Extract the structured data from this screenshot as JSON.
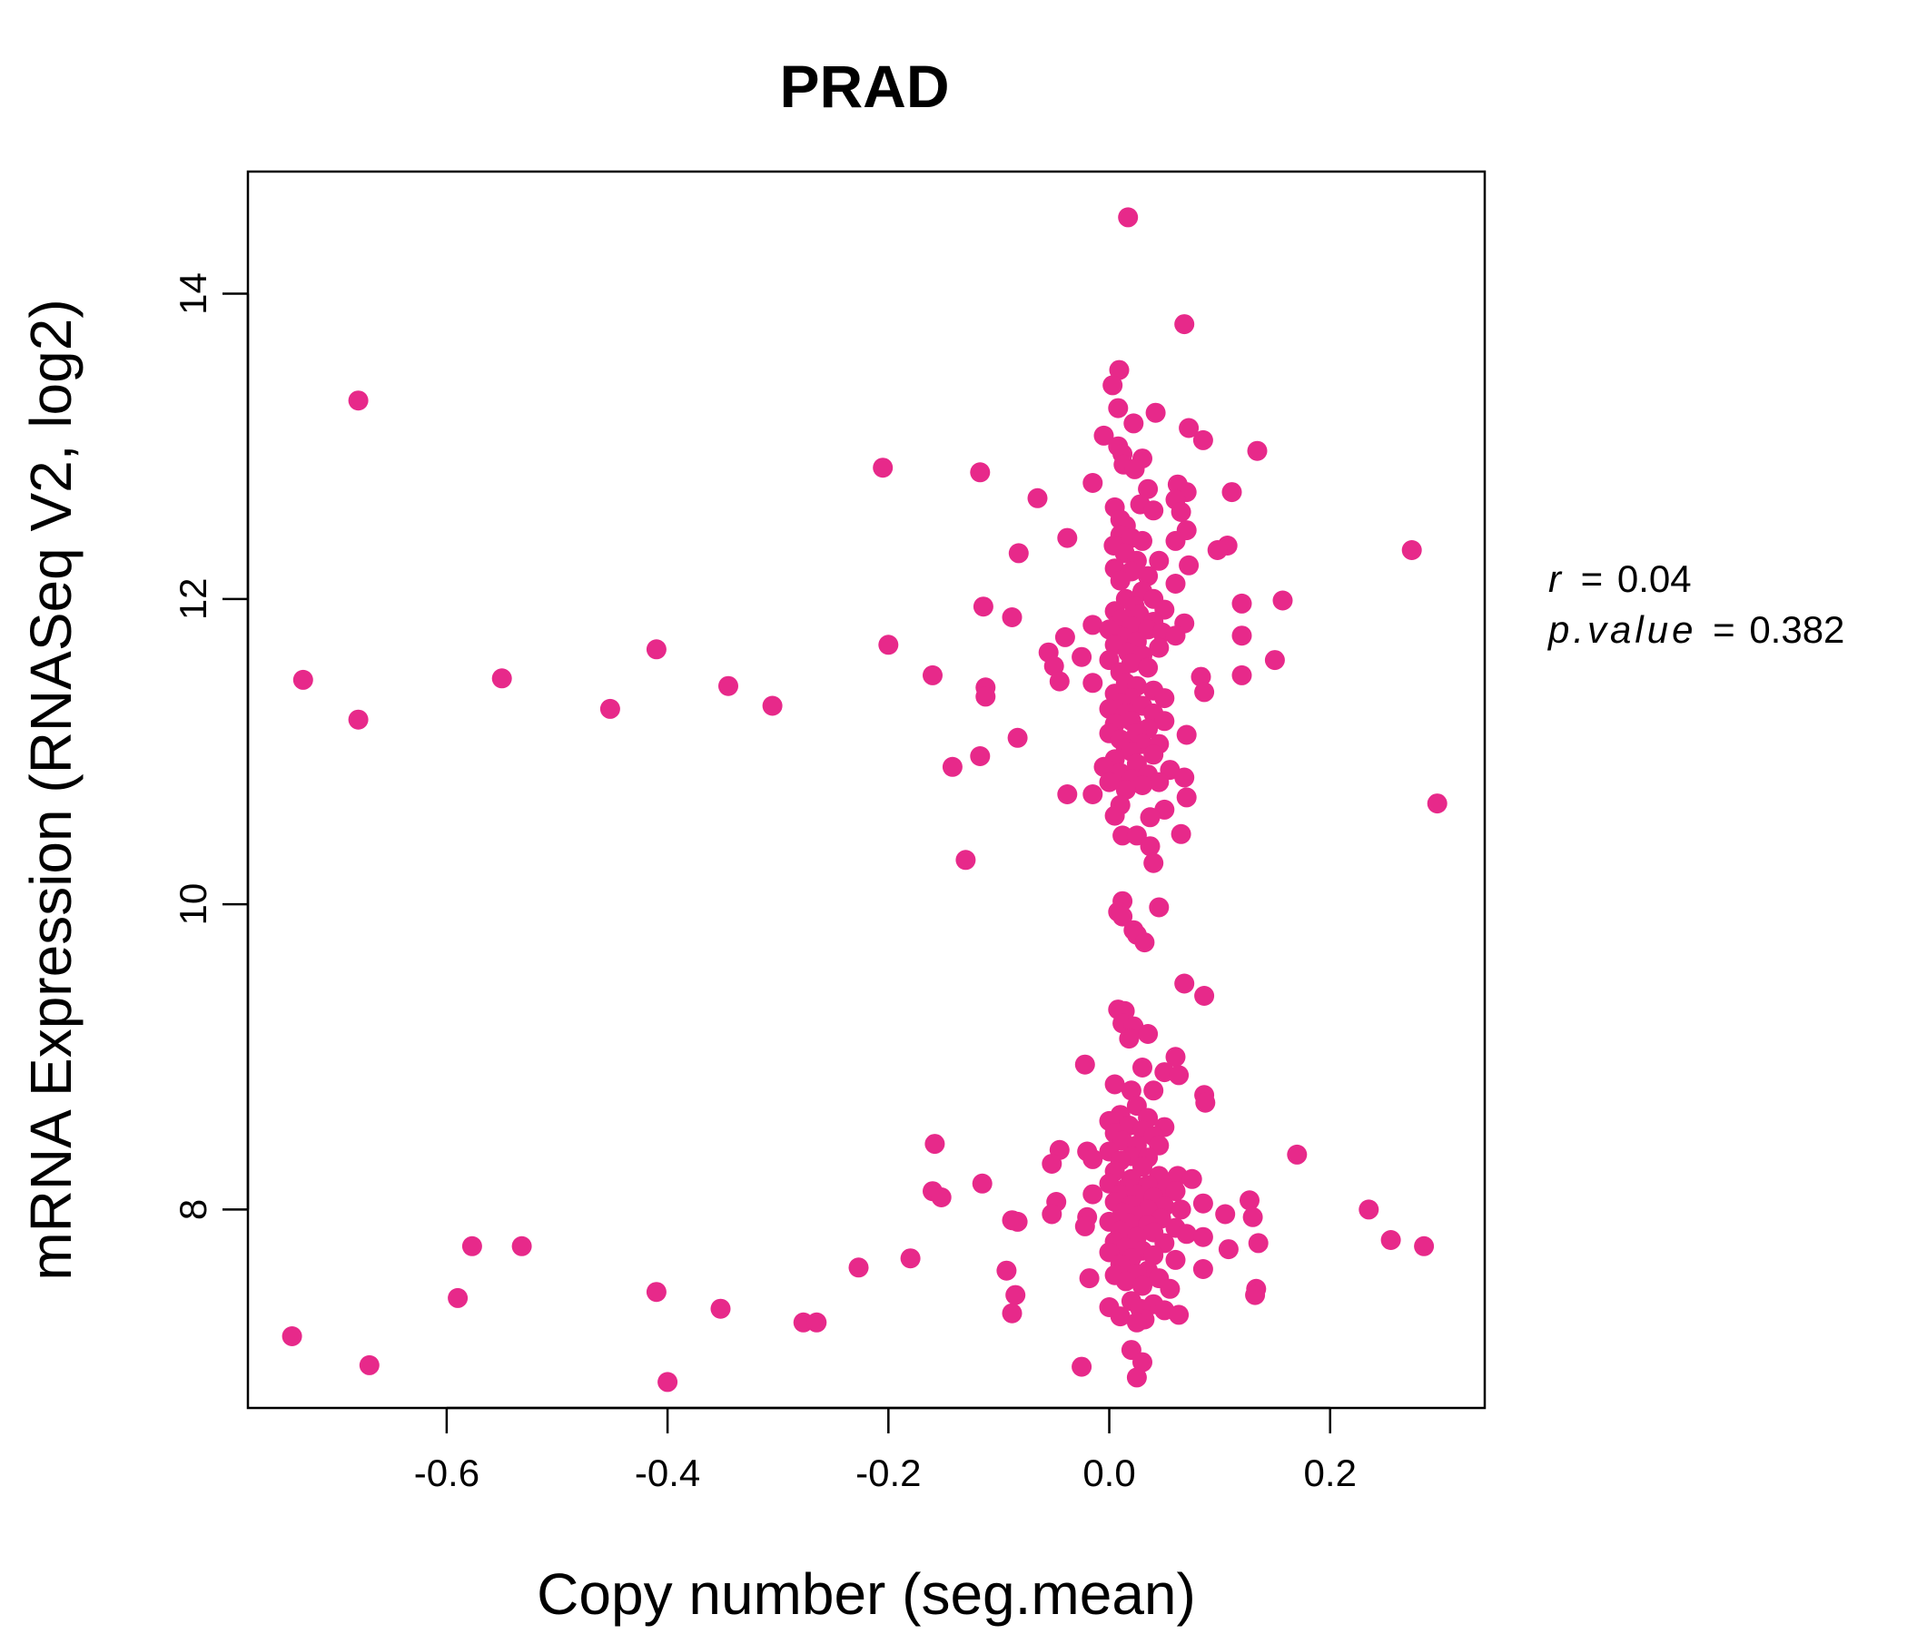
{
  "chart_data": {
    "type": "scatter",
    "title": "PRAD",
    "xlabel": "Copy number (seg.mean)",
    "ylabel": "mRNA Expression (RNASeq V2, log2)",
    "xlim": [
      -0.78,
      0.34
    ],
    "ylim": [
      6.7,
      14.8
    ],
    "xticks": [
      -0.6,
      -0.4,
      -0.2,
      0.0,
      0.2
    ],
    "xtick_labels": [
      "-0.6",
      "-0.4",
      "-0.2",
      "0.0",
      "0.2"
    ],
    "yticks": [
      8,
      10,
      12,
      14
    ],
    "ytick_labels": [
      "8",
      "10",
      "12",
      "14"
    ],
    "grid": false,
    "point_color": "#E7298A",
    "stats": {
      "r_symbol": "r",
      "r_value": "0.04",
      "p_symbol": "p.value",
      "p_value": "0.382",
      "equals": "="
    },
    "points": [
      [
        0.017,
        14.5
      ],
      [
        0.068,
        13.8
      ],
      [
        -0.68,
        13.3
      ],
      [
        0.009,
        13.5
      ],
      [
        0.003,
        13.4
      ],
      [
        0.008,
        13.25
      ],
      [
        0.042,
        13.22
      ],
      [
        0.022,
        13.15
      ],
      [
        0.072,
        13.12
      ],
      [
        -0.005,
        13.07
      ],
      [
        0.085,
        13.04
      ],
      [
        0.134,
        12.97
      ],
      [
        0.008,
        13.0
      ],
      [
        0.012,
        12.95
      ],
      [
        0.013,
        12.88
      ],
      [
        0.03,
        12.92
      ],
      [
        0.023,
        12.85
      ],
      [
        -0.205,
        12.86
      ],
      [
        -0.117,
        12.83
      ],
      [
        0.062,
        12.75
      ],
      [
        -0.015,
        12.76
      ],
      [
        0.035,
        12.72
      ],
      [
        0.07,
        12.7
      ],
      [
        0.111,
        12.7
      ],
      [
        -0.065,
        12.66
      ],
      [
        0.06,
        12.65
      ],
      [
        0.005,
        12.6
      ],
      [
        0.028,
        12.62
      ],
      [
        0.04,
        12.58
      ],
      [
        0.065,
        12.57
      ],
      [
        0.01,
        12.52
      ],
      [
        0.015,
        12.48
      ],
      [
        0.07,
        12.45
      ],
      [
        0.01,
        12.42
      ],
      [
        0.02,
        12.4
      ],
      [
        -0.038,
        12.4
      ],
      [
        0.03,
        12.38
      ],
      [
        0.06,
        12.38
      ],
      [
        0.004,
        12.35
      ],
      [
        0.107,
        12.35
      ],
      [
        0.098,
        12.32
      ],
      [
        0.274,
        12.32
      ],
      [
        -0.082,
        12.3
      ],
      [
        0.014,
        12.3
      ],
      [
        0.025,
        12.25
      ],
      [
        0.045,
        12.25
      ],
      [
        0.072,
        12.22
      ],
      [
        0.005,
        12.2
      ],
      [
        0.02,
        12.18
      ],
      [
        0.035,
        12.15
      ],
      [
        0.01,
        12.12
      ],
      [
        0.06,
        12.1
      ],
      [
        0.03,
        12.05
      ],
      [
        0.015,
        12.0
      ],
      [
        0.04,
        12.0
      ],
      [
        0.157,
        11.99
      ],
      [
        0.12,
        11.97
      ],
      [
        0.023,
        11.95
      ],
      [
        -0.114,
        11.95
      ],
      [
        0.05,
        11.93
      ],
      [
        0.005,
        11.92
      ],
      [
        0.027,
        11.9
      ],
      [
        -0.088,
        11.88
      ],
      [
        0.011,
        11.87
      ],
      [
        0.04,
        11.85
      ],
      [
        0.068,
        11.84
      ],
      [
        -0.015,
        11.83
      ],
      [
        0.02,
        11.82
      ],
      [
        0.035,
        11.8
      ],
      [
        0.0,
        11.8
      ],
      [
        0.048,
        11.78
      ],
      [
        0.012,
        11.75
      ],
      [
        0.06,
        11.76
      ],
      [
        0.12,
        11.76
      ],
      [
        -0.04,
        11.75
      ],
      [
        0.025,
        11.72
      ],
      [
        0.005,
        11.7
      ],
      [
        -0.2,
        11.7
      ],
      [
        -0.41,
        11.67
      ],
      [
        0.045,
        11.68
      ],
      [
        0.017,
        11.65
      ],
      [
        -0.055,
        11.65
      ],
      [
        0.03,
        11.63
      ],
      [
        -0.025,
        11.62
      ],
      [
        0.15,
        11.6
      ],
      [
        0.0,
        11.6
      ],
      [
        0.02,
        11.58
      ],
      [
        -0.05,
        11.56
      ],
      [
        0.035,
        11.55
      ],
      [
        0.01,
        11.52
      ],
      [
        -0.16,
        11.5
      ],
      [
        0.12,
        11.5
      ],
      [
        0.083,
        11.49
      ],
      [
        -0.73,
        11.47
      ],
      [
        -0.55,
        11.48
      ],
      [
        -0.045,
        11.46
      ],
      [
        0.015,
        11.45
      ],
      [
        -0.015,
        11.45
      ],
      [
        0.025,
        11.43
      ],
      [
        -0.345,
        11.43
      ],
      [
        -0.112,
        11.42
      ],
      [
        0.04,
        11.4
      ],
      [
        0.086,
        11.39
      ],
      [
        0.005,
        11.38
      ],
      [
        -0.112,
        11.36
      ],
      [
        0.02,
        11.35
      ],
      [
        0.05,
        11.35
      ],
      [
        0.01,
        11.32
      ],
      [
        0.03,
        11.3
      ],
      [
        -0.305,
        11.3
      ],
      [
        -0.452,
        11.28
      ],
      [
        0.0,
        11.28
      ],
      [
        0.04,
        11.25
      ],
      [
        0.015,
        11.25
      ],
      [
        -0.68,
        11.21
      ],
      [
        0.02,
        11.2
      ],
      [
        0.05,
        11.2
      ],
      [
        0.005,
        11.18
      ],
      [
        0.035,
        11.15
      ],
      [
        0.025,
        11.12
      ],
      [
        0.0,
        11.12
      ],
      [
        0.07,
        11.11
      ],
      [
        -0.083,
        11.09
      ],
      [
        0.01,
        11.08
      ],
      [
        0.03,
        11.05
      ],
      [
        0.045,
        11.05
      ],
      [
        0.015,
        11.02
      ],
      [
        -0.117,
        10.97
      ],
      [
        0.02,
        11.0
      ],
      [
        0.04,
        10.98
      ],
      [
        0.005,
        10.95
      ],
      [
        -0.142,
        10.9
      ],
      [
        -0.005,
        10.9
      ],
      [
        0.025,
        10.92
      ],
      [
        0.055,
        10.88
      ],
      [
        0.01,
        10.86
      ],
      [
        0.035,
        10.85
      ],
      [
        0.068,
        10.83
      ],
      [
        0.02,
        10.82
      ],
      [
        0.045,
        10.8
      ],
      [
        0.0,
        10.8
      ],
      [
        0.03,
        10.78
      ],
      [
        -0.038,
        10.72
      ],
      [
        -0.015,
        10.72
      ],
      [
        0.015,
        10.75
      ],
      [
        0.07,
        10.7
      ],
      [
        0.297,
        10.66
      ],
      [
        0.01,
        10.65
      ],
      [
        0.05,
        10.62
      ],
      [
        0.005,
        10.58
      ],
      [
        0.037,
        10.57
      ],
      [
        0.065,
        10.46
      ],
      [
        0.012,
        10.45
      ],
      [
        0.025,
        10.45
      ],
      [
        0.037,
        10.38
      ],
      [
        0.04,
        10.27
      ],
      [
        -0.13,
        10.29
      ],
      [
        0.012,
        10.02
      ],
      [
        0.008,
        9.95
      ],
      [
        0.045,
        9.98
      ],
      [
        0.012,
        9.92
      ],
      [
        0.022,
        9.83
      ],
      [
        0.025,
        9.8
      ],
      [
        0.032,
        9.75
      ],
      [
        0.068,
        9.48
      ],
      [
        0.086,
        9.4
      ],
      [
        0.008,
        9.31
      ],
      [
        0.014,
        9.3
      ],
      [
        0.012,
        9.22
      ],
      [
        0.022,
        9.2
      ],
      [
        0.035,
        9.15
      ],
      [
        0.018,
        9.12
      ],
      [
        0.06,
        9.0
      ],
      [
        -0.022,
        8.95
      ],
      [
        0.03,
        8.93
      ],
      [
        0.05,
        8.9
      ],
      [
        0.063,
        8.88
      ],
      [
        0.005,
        8.82
      ],
      [
        0.04,
        8.78
      ],
      [
        0.02,
        8.78
      ],
      [
        0.086,
        8.75
      ],
      [
        0.087,
        8.7
      ],
      [
        0.025,
        8.68
      ],
      [
        0.01,
        8.62
      ],
      [
        0.035,
        8.6
      ],
      [
        0.0,
        8.58
      ],
      [
        0.018,
        8.55
      ],
      [
        0.05,
        8.54
      ],
      [
        0.03,
        8.52
      ],
      [
        0.005,
        8.5
      ],
      [
        0.04,
        8.48
      ],
      [
        0.012,
        8.45
      ],
      [
        -0.158,
        8.43
      ],
      [
        0.025,
        8.42
      ],
      [
        0.045,
        8.42
      ],
      [
        -0.045,
        8.39
      ],
      [
        -0.02,
        8.38
      ],
      [
        0.0,
        8.38
      ],
      [
        0.17,
        8.36
      ],
      [
        0.02,
        8.35
      ],
      [
        0.035,
        8.34
      ],
      [
        -0.015,
        8.33
      ],
      [
        0.01,
        8.32
      ],
      [
        -0.052,
        8.3
      ],
      [
        0.03,
        8.28
      ],
      [
        0.005,
        8.25
      ],
      [
        0.062,
        8.22
      ],
      [
        0.045,
        8.22
      ],
      [
        0.02,
        8.2
      ],
      [
        0.075,
        8.2
      ],
      [
        -0.115,
        8.17
      ],
      [
        0.0,
        8.17
      ],
      [
        0.035,
        8.16
      ],
      [
        0.015,
        8.14
      ],
      [
        0.052,
        8.14
      ],
      [
        0.06,
        8.12
      ],
      [
        -0.16,
        8.12
      ],
      [
        0.01,
        8.1
      ],
      [
        -0.015,
        8.1
      ],
      [
        0.025,
        8.1
      ],
      [
        -0.152,
        8.08
      ],
      [
        0.04,
        8.08
      ],
      [
        0.005,
        8.05
      ],
      [
        -0.048,
        8.05
      ],
      [
        0.127,
        8.06
      ],
      [
        0.02,
        8.03
      ],
      [
        0.085,
        8.04
      ],
      [
        0.05,
        8.02
      ],
      [
        0.235,
        8.0
      ],
      [
        0.035,
        8.0
      ],
      [
        0.065,
        8.0
      ],
      [
        0.012,
        7.98
      ],
      [
        -0.052,
        7.97
      ],
      [
        0.105,
        7.97
      ],
      [
        0.028,
        7.96
      ],
      [
        -0.02,
        7.95
      ],
      [
        0.047,
        7.94
      ],
      [
        0.13,
        7.95
      ],
      [
        -0.088,
        7.93
      ],
      [
        -0.083,
        7.92
      ],
      [
        0.0,
        7.92
      ],
      [
        0.018,
        7.91
      ],
      [
        0.035,
        7.9
      ],
      [
        -0.022,
        7.89
      ],
      [
        0.06,
        7.88
      ],
      [
        0.01,
        7.86
      ],
      [
        0.04,
        7.85
      ],
      [
        0.07,
        7.84
      ],
      [
        0.085,
        7.82
      ],
      [
        0.025,
        7.82
      ],
      [
        0.255,
        7.8
      ],
      [
        0.005,
        7.79
      ],
      [
        0.135,
        7.78
      ],
      [
        0.05,
        7.78
      ],
      [
        0.285,
        7.76
      ],
      [
        -0.577,
        7.76
      ],
      [
        -0.532,
        7.76
      ],
      [
        0.015,
        7.75
      ],
      [
        0.108,
        7.74
      ],
      [
        0.03,
        7.73
      ],
      [
        0.0,
        7.72
      ],
      [
        0.04,
        7.7
      ],
      [
        -0.18,
        7.68
      ],
      [
        0.02,
        7.68
      ],
      [
        0.06,
        7.67
      ],
      [
        -0.227,
        7.62
      ],
      [
        0.01,
        7.64
      ],
      [
        0.085,
        7.61
      ],
      [
        0.035,
        7.6
      ],
      [
        -0.093,
        7.6
      ],
      [
        0.025,
        7.58
      ],
      [
        0.005,
        7.57
      ],
      [
        -0.018,
        7.55
      ],
      [
        0.045,
        7.55
      ],
      [
        0.015,
        7.53
      ],
      [
        0.03,
        7.5
      ],
      [
        0.055,
        7.48
      ],
      [
        0.133,
        7.48
      ],
      [
        -0.41,
        7.46
      ],
      [
        0.132,
        7.44
      ],
      [
        -0.085,
        7.44
      ],
      [
        -0.59,
        7.42
      ],
      [
        0.02,
        7.4
      ],
      [
        0.04,
        7.38
      ],
      [
        0.0,
        7.36
      ],
      [
        -0.352,
        7.35
      ],
      [
        0.028,
        7.35
      ],
      [
        0.05,
        7.34
      ],
      [
        -0.088,
        7.32
      ],
      [
        0.063,
        7.31
      ],
      [
        0.01,
        7.3
      ],
      [
        0.032,
        7.28
      ],
      [
        -0.277,
        7.26
      ],
      [
        -0.265,
        7.26
      ],
      [
        0.025,
        7.26
      ],
      [
        -0.74,
        7.17
      ],
      [
        0.02,
        7.08
      ],
      [
        0.03,
        7.0
      ],
      [
        -0.67,
        6.98
      ],
      [
        -0.025,
        6.97
      ],
      [
        0.025,
        6.9
      ],
      [
        -0.4,
        6.87
      ]
    ]
  }
}
